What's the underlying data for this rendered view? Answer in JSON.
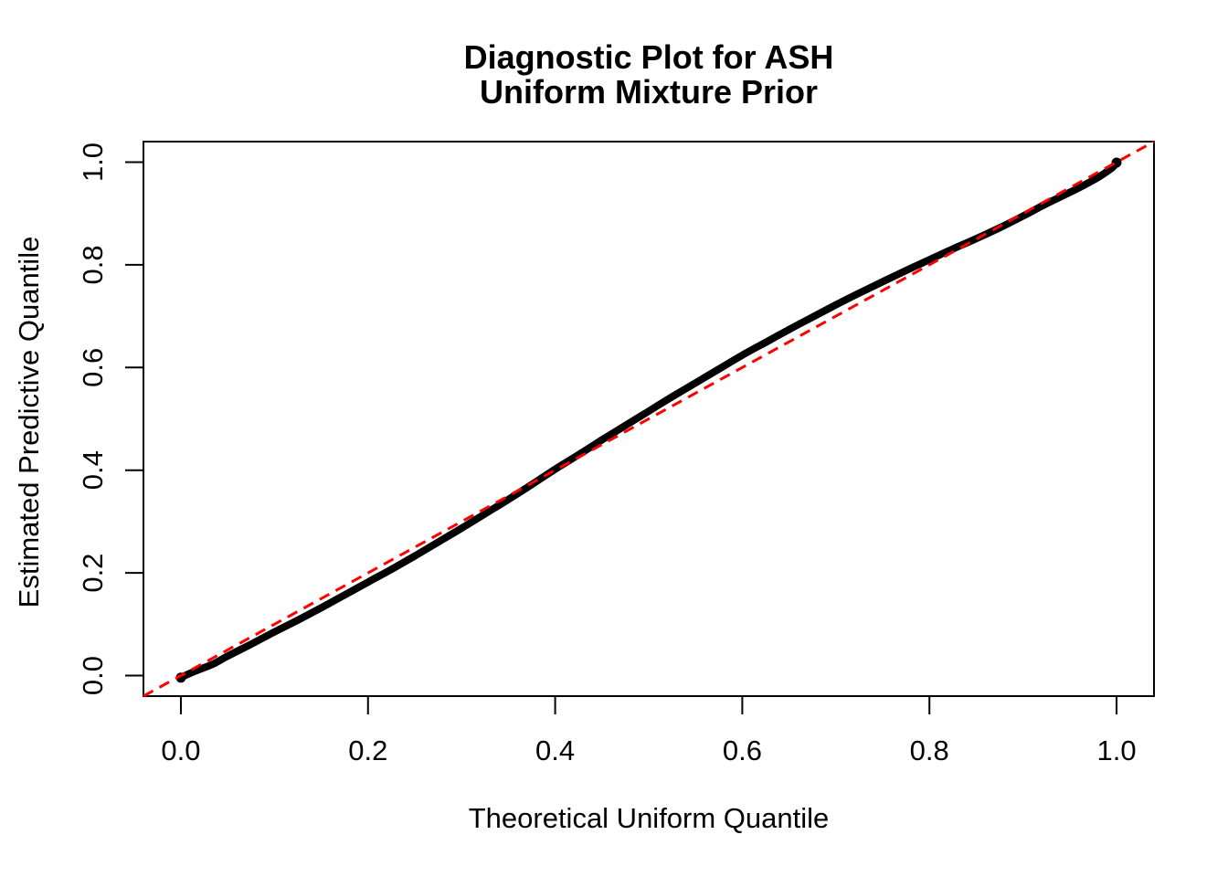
{
  "chart_data": {
    "type": "line",
    "title_lines": [
      "Diagnostic Plot for ASH",
      "Uniform Mixture Prior"
    ],
    "xlabel": "Theoretical Uniform Quantile",
    "ylabel": "Estimated Predictive Quantile",
    "x_ticks": [
      {
        "value": 0.0,
        "label": "0.0"
      },
      {
        "value": 0.2,
        "label": "0.2"
      },
      {
        "value": 0.4,
        "label": "0.4"
      },
      {
        "value": 0.6,
        "label": "0.6"
      },
      {
        "value": 0.8,
        "label": "0.8"
      },
      {
        "value": 1.0,
        "label": "1.0"
      }
    ],
    "y_ticks": [
      {
        "value": 0.0,
        "label": "0.0"
      },
      {
        "value": 0.2,
        "label": "0.2"
      },
      {
        "value": 0.4,
        "label": "0.4"
      },
      {
        "value": 0.6,
        "label": "0.6"
      },
      {
        "value": 0.8,
        "label": "0.8"
      },
      {
        "value": 1.0,
        "label": "1.0"
      }
    ],
    "xlim": [
      -0.04,
      1.04
    ],
    "ylim": [
      -0.04,
      1.04
    ],
    "grid": false,
    "legend": null,
    "series": [
      {
        "name": "estimated-vs-theoretical-quantile-curve",
        "type": "line",
        "color": "#000000",
        "line_width": 8,
        "style": "solid",
        "points": [
          [
            0.0,
            -0.004
          ],
          [
            0.008,
            0.003
          ],
          [
            0.02,
            0.012
          ],
          [
            0.035,
            0.023
          ],
          [
            0.05,
            0.038
          ],
          [
            0.075,
            0.061
          ],
          [
            0.1,
            0.085
          ],
          [
            0.125,
            0.108
          ],
          [
            0.15,
            0.132
          ],
          [
            0.175,
            0.157
          ],
          [
            0.2,
            0.182
          ],
          [
            0.225,
            0.207
          ],
          [
            0.25,
            0.233
          ],
          [
            0.275,
            0.26
          ],
          [
            0.3,
            0.287
          ],
          [
            0.325,
            0.315
          ],
          [
            0.35,
            0.343
          ],
          [
            0.375,
            0.372
          ],
          [
            0.4,
            0.402
          ],
          [
            0.425,
            0.43
          ],
          [
            0.45,
            0.459
          ],
          [
            0.475,
            0.487
          ],
          [
            0.5,
            0.515
          ],
          [
            0.525,
            0.543
          ],
          [
            0.55,
            0.57
          ],
          [
            0.575,
            0.597
          ],
          [
            0.6,
            0.624
          ],
          [
            0.625,
            0.649
          ],
          [
            0.65,
            0.674
          ],
          [
            0.675,
            0.698
          ],
          [
            0.7,
            0.722
          ],
          [
            0.725,
            0.745
          ],
          [
            0.75,
            0.767
          ],
          [
            0.775,
            0.789
          ],
          [
            0.8,
            0.81
          ],
          [
            0.825,
            0.831
          ],
          [
            0.85,
            0.851
          ],
          [
            0.875,
            0.872
          ],
          [
            0.9,
            0.895
          ],
          [
            0.925,
            0.919
          ],
          [
            0.95,
            0.941
          ],
          [
            0.965,
            0.955
          ],
          [
            0.98,
            0.97
          ],
          [
            0.99,
            0.982
          ],
          [
            0.996,
            0.99
          ],
          [
            1.0,
            0.999
          ]
        ]
      },
      {
        "name": "reference-identity-line",
        "type": "line",
        "color": "#FF0000",
        "line_width": 3,
        "style": "dashed",
        "points": [
          [
            -0.04,
            -0.04
          ],
          [
            1.04,
            1.04
          ]
        ]
      }
    ]
  },
  "colors": {
    "background": "#FFFFFF",
    "axis": "#000000",
    "curve": "#000000",
    "reference": "#FF0000"
  }
}
